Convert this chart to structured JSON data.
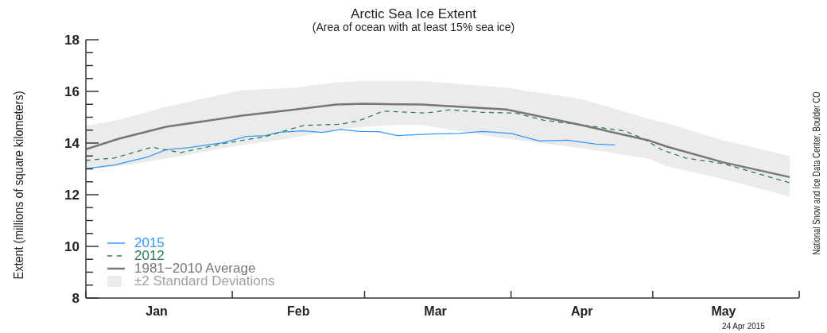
{
  "chart_data": {
    "type": "line",
    "title": "Arctic Sea Ice Extent",
    "subtitle": "(Area of ocean with at least 15% sea ice)",
    "ylabel": "Extent (millions of square kilometers)",
    "xlim": [
      "--01-01",
      "--06-01"
    ],
    "xticks": [
      {
        "value": "--01-01",
        "label": null
      },
      {
        "value": "--01-16",
        "label": "Jan"
      },
      {
        "value": "--02-01",
        "label": null
      },
      {
        "value": "--02-15",
        "label": "Feb"
      },
      {
        "value": "--03-01",
        "label": null
      },
      {
        "value": "--03-16",
        "label": "Mar"
      },
      {
        "value": "--04-01",
        "label": null
      },
      {
        "value": "--04-16",
        "label": "Apr"
      },
      {
        "value": "--05-01",
        "label": null
      },
      {
        "value": "--05-16",
        "label": "May"
      },
      {
        "value": "--06-01",
        "label": null
      }
    ],
    "ylim": [
      8,
      18
    ],
    "yticks": [
      8,
      {
        "value": 8.5,
        "label": null
      },
      {
        "value": 9,
        "label": null
      },
      {
        "value": 9.5,
        "label": null
      },
      10,
      {
        "value": 10.5,
        "label": null
      },
      {
        "value": 11,
        "label": null
      },
      {
        "value": 11.5,
        "label": null
      },
      12,
      {
        "value": 12.5,
        "label": null
      },
      {
        "value": 13,
        "label": null
      },
      {
        "value": 13.5,
        "label": null
      },
      14,
      {
        "value": 14.5,
        "label": null
      },
      {
        "value": 15,
        "label": null
      },
      {
        "value": 15.5,
        "label": null
      },
      16,
      {
        "value": 16.5,
        "label": null
      },
      {
        "value": 17,
        "label": null
      },
      {
        "value": 17.5,
        "label": null
      },
      18
    ],
    "legend": "bottom left",
    "marker": "none",
    "series": [
      {
        "name": "2015",
        "color": "#3399ff",
        "line_style": "solid",
        "x": [
          "--01-01",
          "--01-07",
          "--01-14",
          "--01-18",
          "--01-23",
          "--01-30",
          "--02-04",
          "--02-08",
          "--02-11",
          "--02-16",
          "--02-20",
          "--02-24",
          "--02-28",
          "--03-04",
          "--03-08",
          "--03-15",
          "--03-21",
          "--03-26",
          "--04-01",
          "--04-07",
          "--04-13",
          "--04-19",
          "--04-23"
        ],
        "values": [
          13.01,
          13.15,
          13.46,
          13.74,
          13.83,
          14.01,
          14.26,
          14.29,
          14.42,
          14.47,
          14.41,
          14.53,
          14.45,
          14.44,
          14.29,
          14.35,
          14.37,
          14.45,
          14.37,
          14.08,
          14.11,
          13.96,
          13.93
        ]
      },
      {
        "name": "2012",
        "color": "#2e7d4f",
        "line_style": "dashed",
        "x": [
          "--01-01",
          "--01-07",
          "--01-15",
          "--01-21",
          "--01-31",
          "--02-08",
          "--02-16",
          "--02-24",
          "--02-28",
          "--03-05",
          "--03-08",
          "--03-14",
          "--03-19",
          "--03-26",
          "--04-02",
          "--04-08",
          "--04-16",
          "--04-25",
          "--04-29",
          "--05-03",
          "--05-08",
          "--05-16",
          "--05-30"
        ],
        "values": [
          13.33,
          13.42,
          13.84,
          13.63,
          14.01,
          14.25,
          14.68,
          14.73,
          14.88,
          15.24,
          15.21,
          15.16,
          15.29,
          15.19,
          15.16,
          14.88,
          14.7,
          14.47,
          14.17,
          13.73,
          13.42,
          13.2,
          12.46
        ]
      },
      {
        "name": "1981−2010 Average",
        "color": "#777777",
        "line_style": "solid",
        "x": [
          "--01-01",
          "--01-08",
          "--01-18",
          "--02-03",
          "--02-14",
          "--02-23",
          "--03-01",
          "--03-08",
          "--03-13",
          "--03-31",
          "--04-16",
          "--04-30",
          "--05-04",
          "--05-16",
          "--05-30"
        ],
        "values": [
          13.76,
          14.17,
          14.63,
          15.06,
          15.29,
          15.49,
          15.52,
          15.5,
          15.49,
          15.3,
          14.69,
          14.11,
          13.86,
          13.25,
          12.68
        ]
      },
      {
        "name": "±2 Standard Deviations",
        "type": "area",
        "color": "#ebebeb",
        "x": [
          "--01-01",
          "--01-08",
          "--01-18",
          "--02-03",
          "--02-14",
          "--02-23",
          "--03-01",
          "--03-08",
          "--03-13",
          "--03-31",
          "--04-16",
          "--04-30",
          "--05-04",
          "--05-16",
          "--05-30"
        ],
        "values": [
          null,
          null,
          null,
          null,
          null,
          null,
          null,
          null,
          null,
          null,
          null,
          null,
          null,
          null,
          null
        ],
        "lower": [
          13.0,
          13.1,
          13.4,
          13.92,
          14.2,
          14.55,
          14.62,
          14.7,
          14.7,
          14.17,
          13.8,
          13.4,
          13.1,
          12.6,
          11.93
        ],
        "upper": [
          14.68,
          14.9,
          15.4,
          16.05,
          16.14,
          16.35,
          16.41,
          16.41,
          16.4,
          16.15,
          15.7,
          14.95,
          14.78,
          14.1,
          13.5
        ]
      }
    ],
    "annotations": [
      "National Snow and Ice Data Center, Boulder CO",
      "24 Apr 2015"
    ]
  }
}
